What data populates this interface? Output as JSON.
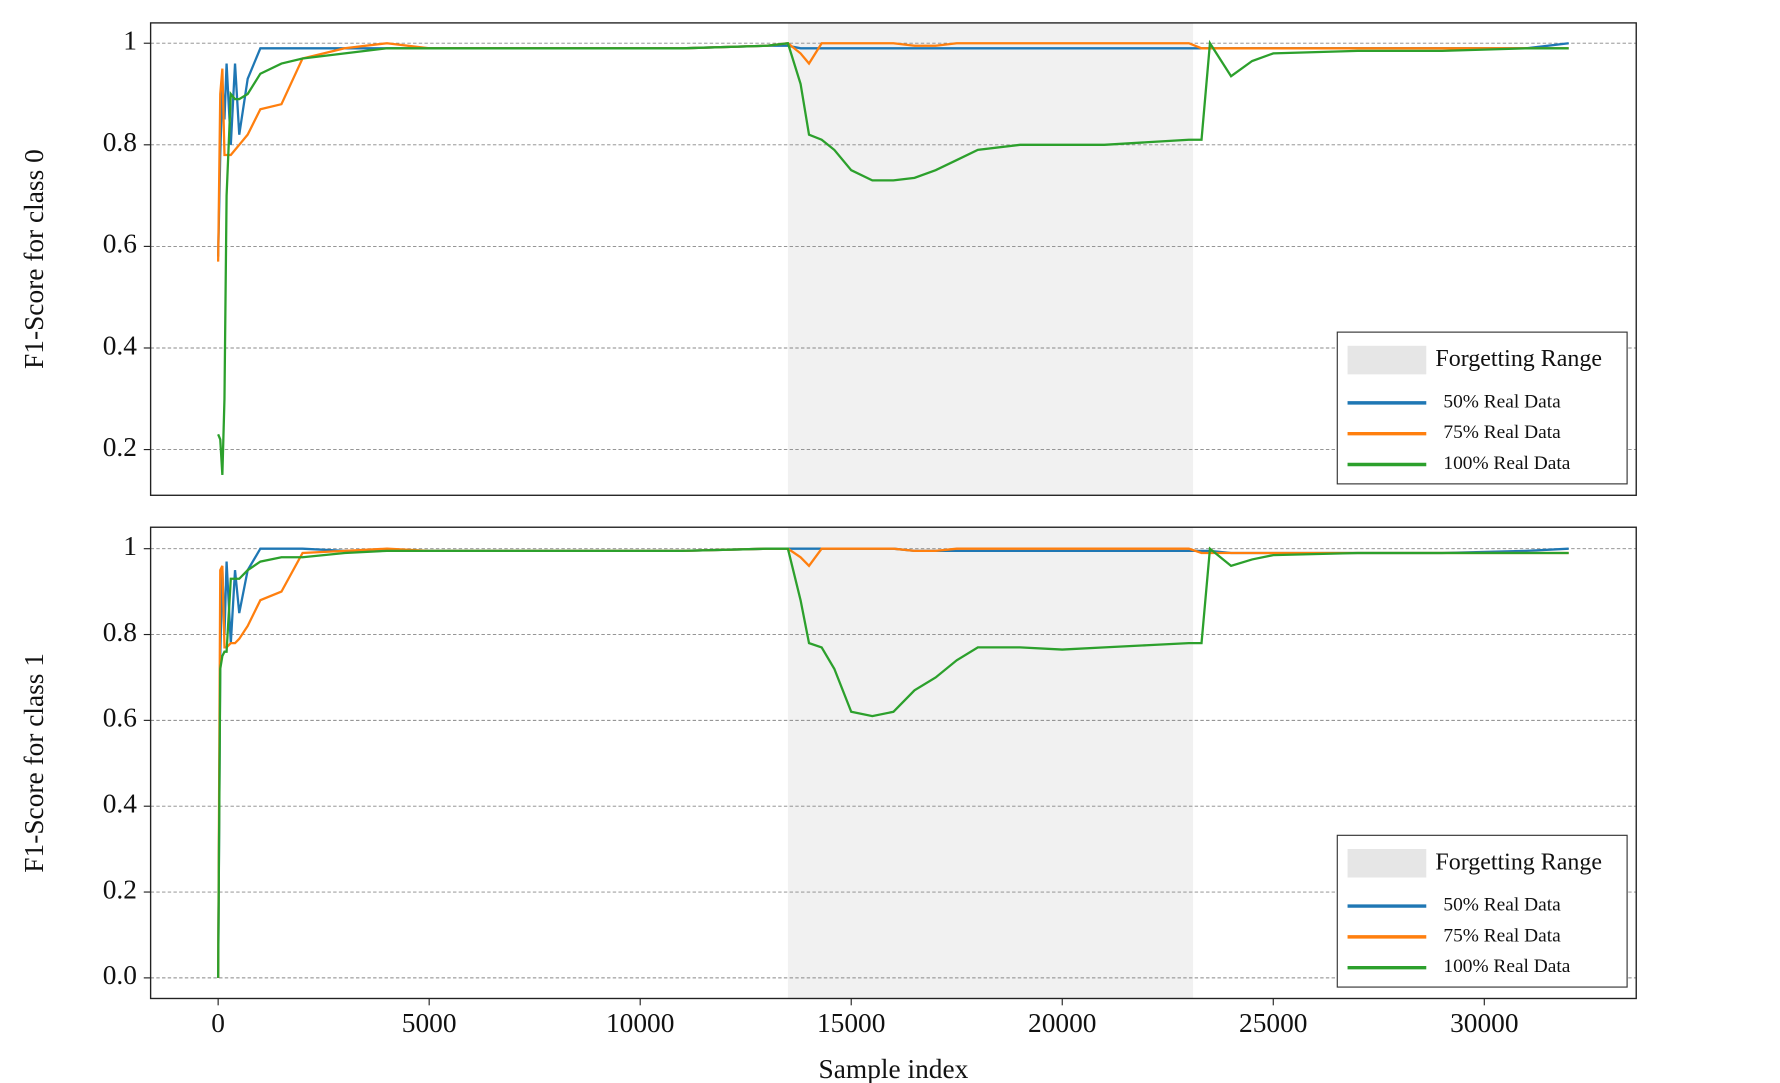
{
  "chart_data": [
    {
      "type": "line",
      "ylabel": "F1-Score for class 0",
      "x": [
        0,
        50,
        100,
        150,
        200,
        300,
        400,
        500,
        700,
        1000,
        1500,
        2000,
        3000,
        4000,
        5000,
        7000,
        9000,
        11000,
        13000,
        13500,
        13800,
        14000,
        14300,
        14600,
        15000,
        15500,
        16000,
        16500,
        17000,
        17500,
        18000,
        19000,
        20000,
        21000,
        22000,
        23000,
        23300,
        23500,
        24000,
        24500,
        25000,
        27000,
        29000,
        31000,
        32000
      ],
      "series": [
        {
          "name": "50% Real Data",
          "color": "#1f77b4",
          "values": [
            0.58,
            0.78,
            0.92,
            0.85,
            0.96,
            0.8,
            0.96,
            0.82,
            0.93,
            0.99,
            0.99,
            0.99,
            0.99,
            0.99,
            0.99,
            0.99,
            0.99,
            0.99,
            0.995,
            0.995,
            0.99,
            0.99,
            0.99,
            0.99,
            0.99,
            0.99,
            0.99,
            0.99,
            0.99,
            0.99,
            0.99,
            0.99,
            0.99,
            0.99,
            0.99,
            0.99,
            0.99,
            0.99,
            0.99,
            0.99,
            0.99,
            0.99,
            0.99,
            0.99,
            1.0
          ]
        },
        {
          "name": "75% Real Data",
          "color": "#ff7f0e",
          "values": [
            0.57,
            0.9,
            0.95,
            0.78,
            0.78,
            0.78,
            0.79,
            0.8,
            0.82,
            0.87,
            0.88,
            0.97,
            0.99,
            1.0,
            0.99,
            0.99,
            0.99,
            0.99,
            0.995,
            1.0,
            0.98,
            0.96,
            1.0,
            1.0,
            1.0,
            1.0,
            1.0,
            0.995,
            0.995,
            1.0,
            1.0,
            1.0,
            1.0,
            1.0,
            1.0,
            1.0,
            0.99,
            0.99,
            0.99,
            0.99,
            0.99,
            0.99,
            0.99,
            0.99,
            0.99
          ]
        },
        {
          "name": "100% Real Data",
          "color": "#2ca02c",
          "values": [
            0.23,
            0.22,
            0.15,
            0.3,
            0.7,
            0.9,
            0.89,
            0.89,
            0.9,
            0.94,
            0.96,
            0.97,
            0.98,
            0.99,
            0.99,
            0.99,
            0.99,
            0.99,
            0.995,
            1.0,
            0.92,
            0.82,
            0.81,
            0.79,
            0.75,
            0.73,
            0.73,
            0.735,
            0.75,
            0.77,
            0.79,
            0.8,
            0.8,
            0.8,
            0.805,
            0.81,
            0.81,
            1.0,
            0.935,
            0.965,
            0.98,
            0.985,
            0.985,
            0.99,
            0.99
          ]
        }
      ],
      "shade": [
        13500,
        23100
      ],
      "shade_label": "Forgetting Range",
      "shade_color": "#e6e6e6",
      "xlim": [
        -1600,
        33600
      ],
      "ylim": [
        0.11,
        1.04
      ],
      "yticks": [
        0.2,
        0.4,
        0.6,
        0.8,
        1
      ],
      "grid": true,
      "legend": "lower right"
    },
    {
      "type": "line",
      "ylabel": "F1-Score for class 1",
      "xlabel": "Sample index",
      "x": [
        0,
        50,
        100,
        150,
        200,
        300,
        400,
        500,
        700,
        1000,
        1500,
        2000,
        3000,
        4000,
        5000,
        7000,
        9000,
        11000,
        13000,
        13500,
        13800,
        14000,
        14300,
        14600,
        15000,
        15500,
        16000,
        16500,
        17000,
        17500,
        18000,
        19000,
        20000,
        21000,
        22000,
        23000,
        23300,
        23500,
        24000,
        24500,
        25000,
        27000,
        29000,
        31000,
        32000
      ],
      "series": [
        {
          "name": "50% Real Data",
          "color": "#1f77b4",
          "values": [
            0.0,
            0.75,
            0.95,
            0.8,
            0.97,
            0.78,
            0.95,
            0.85,
            0.95,
            1.0,
            1.0,
            1.0,
            0.995,
            0.995,
            0.995,
            0.995,
            0.995,
            0.995,
            1.0,
            1.0,
            1.0,
            1.0,
            1.0,
            1.0,
            1.0,
            1.0,
            1.0,
            0.995,
            0.995,
            0.995,
            0.995,
            0.995,
            0.995,
            0.995,
            0.995,
            0.995,
            0.995,
            0.995,
            0.99,
            0.99,
            0.99,
            0.99,
            0.99,
            0.995,
            1.0
          ]
        },
        {
          "name": "75% Real Data",
          "color": "#ff7f0e",
          "values": [
            0.0,
            0.95,
            0.96,
            0.77,
            0.77,
            0.78,
            0.78,
            0.79,
            0.82,
            0.88,
            0.9,
            0.99,
            0.995,
            1.0,
            0.995,
            0.995,
            0.995,
            0.995,
            1.0,
            1.0,
            0.98,
            0.96,
            1.0,
            1.0,
            1.0,
            1.0,
            1.0,
            0.995,
            0.995,
            1.0,
            1.0,
            1.0,
            1.0,
            1.0,
            1.0,
            1.0,
            0.99,
            0.99,
            0.99,
            0.99,
            0.99,
            0.99,
            0.99,
            0.99,
            0.99
          ]
        },
        {
          "name": "100% Real Data",
          "color": "#2ca02c",
          "values": [
            0.0,
            0.72,
            0.75,
            0.76,
            0.76,
            0.93,
            0.93,
            0.93,
            0.95,
            0.97,
            0.98,
            0.98,
            0.99,
            0.995,
            0.995,
            0.995,
            0.995,
            0.995,
            1.0,
            1.0,
            0.88,
            0.78,
            0.77,
            0.72,
            0.62,
            0.61,
            0.62,
            0.67,
            0.7,
            0.74,
            0.77,
            0.77,
            0.765,
            0.77,
            0.775,
            0.78,
            0.78,
            1.0,
            0.96,
            0.975,
            0.985,
            0.99,
            0.99,
            0.99,
            0.99
          ]
        }
      ],
      "shade": [
        13500,
        23100
      ],
      "shade_label": "Forgetting Range",
      "shade_color": "#e6e6e6",
      "xlim": [
        -1600,
        33600
      ],
      "ylim": [
        -0.048,
        1.05
      ],
      "xticks": [
        0,
        5000,
        10000,
        15000,
        20000,
        25000,
        30000
      ],
      "yticks": [
        {
          "value": 0,
          "label": "0.0"
        },
        0.2,
        0.4,
        0.6,
        0.8,
        1
      ],
      "grid": true,
      "legend": "lower right"
    }
  ]
}
